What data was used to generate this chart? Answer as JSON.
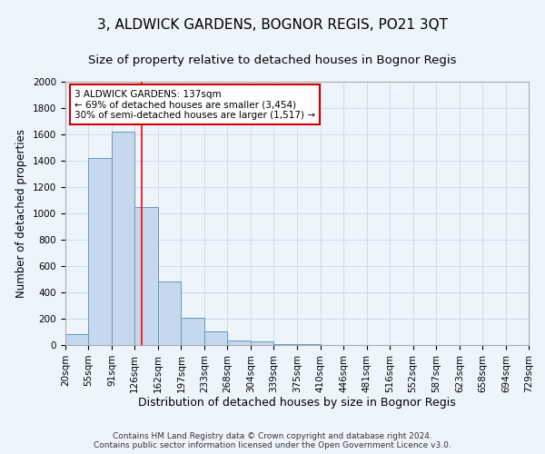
{
  "title": "3, ALDWICK GARDENS, BOGNOR REGIS, PO21 3QT",
  "subtitle": "Size of property relative to detached houses in Bognor Regis",
  "xlabel": "Distribution of detached houses by size in Bognor Regis",
  "ylabel": "Number of detached properties",
  "bin_edges": [
    20,
    55,
    91,
    126,
    162,
    197,
    233,
    268,
    304,
    339,
    375,
    410,
    446,
    481,
    516,
    552,
    587,
    623,
    658,
    694,
    729
  ],
  "bar_heights": [
    80,
    1420,
    1620,
    1050,
    480,
    205,
    105,
    35,
    25,
    10,
    5,
    3,
    2,
    1,
    1,
    1,
    0,
    0,
    0,
    0
  ],
  "bar_color": "#c5d8ee",
  "bar_edge_color": "#6699bb",
  "grid_color": "#c8d8e8",
  "bg_color": "#eef4fb",
  "red_line_x": 137,
  "annotation_text": "3 ALDWICK GARDENS: 137sqm\n← 69% of detached houses are smaller (3,454)\n30% of semi-detached houses are larger (1,517) →",
  "annotation_box_color": "#ffffff",
  "annotation_box_edge": "#cc0000",
  "ylim": [
    0,
    2000
  ],
  "yticks": [
    0,
    200,
    400,
    600,
    800,
    1000,
    1200,
    1400,
    1600,
    1800,
    2000
  ],
  "footer": "Contains HM Land Registry data © Crown copyright and database right 2024.\nContains public sector information licensed under the Open Government Licence v3.0.",
  "title_fontsize": 11,
  "subtitle_fontsize": 9.5,
  "xlabel_fontsize": 9,
  "ylabel_fontsize": 8.5,
  "tick_fontsize": 7.5,
  "annotation_fontsize": 7.5,
  "footer_fontsize": 6.5
}
